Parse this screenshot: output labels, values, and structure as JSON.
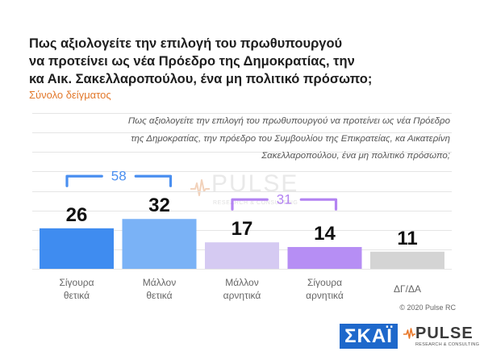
{
  "chart_data": {
    "type": "bar",
    "title": "Πως αξιολογείτε την επιλογή του πρωθυπουργού\nνα προτείνει ως νέα Πρόεδρο της Δημοκρατίας, την\nκα Αικ. Σακελλαροπούλου, ένα μη πολιτικό πρόσωπο;",
    "subtitle": "Σύνολο δείγματος",
    "question": "Πως αξιολογείτε την επιλογή του πρωθυπουργού να προτείνει ως νέα Πρόεδρο\nτης Δημοκρατίας, την πρόεδρο του Συμβουλίου της Επικρατείας, κα Αικατερίνη\nΣακελλαροπούλου, ένα μη πολιτικό πρόσωπο;",
    "categories": [
      "Σίγουρα θετικά",
      "Μάλλον θετικά",
      "Μάλλον αρνητικά",
      "Σίγουρα αρνητικά",
      "ΔΓ/ΔΑ"
    ],
    "values": [
      26,
      32,
      17,
      14,
      11
    ],
    "colors": [
      "#3f8cf0",
      "#7ab2f6",
      "#d5caf2",
      "#b68ef4",
      "#d4d4d4"
    ],
    "groups": [
      {
        "categories": [
          0,
          1
        ],
        "value": 58,
        "color": "#4a8ff0"
      },
      {
        "categories": [
          2,
          3
        ],
        "value": 31,
        "color": "#b383f2"
      }
    ],
    "ylim": [
      0,
      100
    ],
    "grid": true
  },
  "footer": {
    "copyright": "© 2020 Pulse RC"
  },
  "watermark": {
    "name": "PULSE",
    "tagline": "RESEARCH & CONSULTING",
    "icon": "pulse-wave-icon"
  },
  "logos": {
    "skai": "ΣΚΑΪ",
    "pulse": "PULSE",
    "pulse_tagline": "RESEARCH & CONSULTING",
    "pulse_icon": "pulse-wave-icon",
    "skai_color": "#1e68cb",
    "pulse_accent": "#e9782a"
  }
}
